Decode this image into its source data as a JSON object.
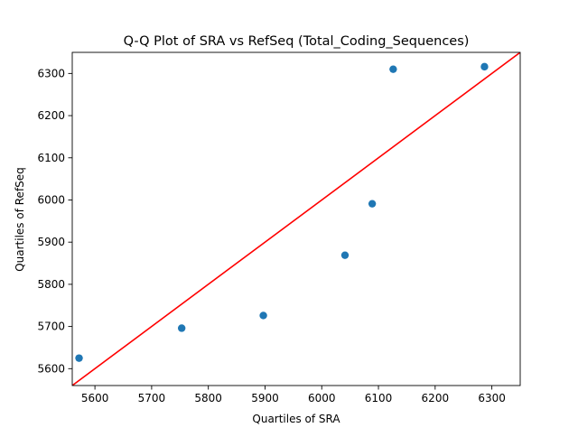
{
  "chart_data": {
    "type": "scatter",
    "title": "Q-Q Plot of SRA vs RefSeq (Total_Coding_Sequences)",
    "xlabel": "Quartiles of SRA",
    "ylabel": "Quartiles of RefSeq",
    "xlim": [
      5560,
      6350
    ],
    "ylim": [
      5560,
      6350
    ],
    "xticks": [
      5600,
      5700,
      5800,
      5900,
      6000,
      6100,
      6200,
      6300
    ],
    "yticks": [
      5600,
      5700,
      5800,
      5900,
      6000,
      6100,
      6200,
      6300
    ],
    "grid": false,
    "points": [
      {
        "x": 5572,
        "y": 5625
      },
      {
        "x": 5753,
        "y": 5696
      },
      {
        "x": 5897,
        "y": 5726
      },
      {
        "x": 6041,
        "y": 5869
      },
      {
        "x": 6089,
        "y": 5991
      },
      {
        "x": 6126,
        "y": 6310
      },
      {
        "x": 6287,
        "y": 6316
      }
    ],
    "reference_line": {
      "from": [
        5560,
        5560
      ],
      "to": [
        6350,
        6350
      ]
    },
    "colors": {
      "points": "#1f77b4",
      "reference_line": "#ff0000",
      "axes": "#000000"
    }
  }
}
